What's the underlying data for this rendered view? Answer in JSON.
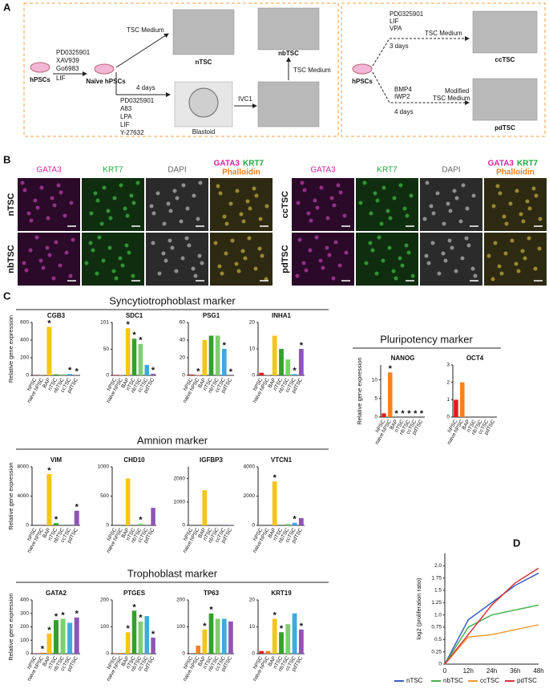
{
  "panel_a": {
    "label": "A",
    "left": {
      "start": "hPSCs",
      "naive_factors": [
        "PD0325901",
        "XAV939",
        "Go6983"
      ],
      "lif": "LIF",
      "naive": "Naïve hPSCs",
      "top_medium": "TSC Medium",
      "ntsc": "nTSC",
      "days": "4 days",
      "blastoid_factors": [
        "PD0325901",
        "A83",
        "LPA",
        "LIF",
        "Y-27632"
      ],
      "blastoid": "Blastoid",
      "ivc": "IVC1",
      "nb_medium": "TSC Medium",
      "nbtsc": "nbTSC"
    },
    "right": {
      "start": "hPSCs",
      "cc_factors": [
        "PD0325901",
        "LIF",
        "VPA",
        "3 days"
      ],
      "cc_medium": "TSC Medium",
      "cctsc": "ccTSC",
      "pd_factors": [
        "BMP4",
        "IWP2",
        "4 days"
      ],
      "pd_medium": [
        "Modified",
        "TSC Medium"
      ],
      "pdtsc": "pdTSC"
    }
  },
  "panel_b": {
    "label": "B",
    "columns": [
      "GATA3",
      "KRT7",
      "DAPI"
    ],
    "merged": [
      {
        "text": "GATA3",
        "color": "#d6249f"
      },
      {
        "text": "KRT7",
        "color": "#1fa83a"
      },
      {
        "text": "Phalloidin",
        "color": "#f07f1e"
      }
    ],
    "groups": [
      {
        "rows": [
          "nTSC",
          "nbTSC"
        ]
      },
      {
        "rows": [
          "ccTSC",
          "pdTSC"
        ]
      }
    ]
  },
  "panel_c": {
    "label": "C",
    "sections": [
      "Syncytiotrophoblast marker",
      "Pluripotency marker",
      "Amnion marker",
      "Trophoblast marker"
    ]
  },
  "panel_d": {
    "label": "D"
  },
  "chart_data": [
    {
      "type": "bar",
      "title": "CGB3",
      "ylabel": "Relative gene expression",
      "categories": [
        "hPSC",
        "naive hPSC",
        "BAP",
        "nTSC",
        "nbTSC",
        "ccTSC",
        "pdTSC"
      ],
      "values": [
        1,
        2,
        550,
        12,
        13,
        16,
        2
      ],
      "colors": [
        "#e31a1c",
        "#f58220",
        "#f5c518",
        "#33a02c",
        "#7dcf6f",
        "#3fa9e0",
        "#8e55b5"
      ],
      "stars": [
        null,
        null,
        "*",
        null,
        null,
        "*",
        "*"
      ],
      "ylim": [
        0,
        600
      ],
      "yticks": [
        0,
        200,
        400,
        600
      ]
    },
    {
      "type": "bar",
      "title": "SDC1",
      "categories": [
        "hPSC",
        "naive hPSC",
        "BAP",
        "nTSC",
        "nbTSC",
        "ccTSC",
        "pdTSC"
      ],
      "values": [
        1,
        0.5,
        90,
        70,
        60,
        20,
        3
      ],
      "colors": [
        "#e31a1c",
        "#f58220",
        "#f5c518",
        "#33a02c",
        "#7dcf6f",
        "#3fa9e0",
        "#8e55b5"
      ],
      "stars": [
        null,
        null,
        "*",
        "*",
        "*",
        null,
        "*"
      ],
      "ylim": [
        0,
        101
      ],
      "yticks": [
        0,
        50,
        101
      ]
    },
    {
      "type": "bar",
      "title": "PSG1",
      "categories": [
        "hPSC",
        "naive hPSC",
        "BAP",
        "nTSC",
        "nbTSC",
        "ccTSC",
        "pdTSC"
      ],
      "values": [
        1,
        0.5,
        40,
        45,
        45,
        30,
        0.1
      ],
      "colors": [
        "#e31a1c",
        "#f58220",
        "#f5c518",
        "#33a02c",
        "#7dcf6f",
        "#3fa9e0",
        "#8e55b5"
      ],
      "stars": [
        null,
        "*",
        null,
        null,
        null,
        "*",
        "*"
      ],
      "ylim": [
        0,
        60
      ],
      "yticks": [
        0,
        20,
        40,
        60
      ]
    },
    {
      "type": "bar",
      "title": "INHA1",
      "categories": [
        "hPSC",
        "naive hPSC",
        "BAP",
        "nTSC",
        "nbTSC",
        "ccTSC",
        "pdTSC"
      ],
      "values": [
        1,
        0.1,
        15,
        10,
        6,
        0.5,
        10
      ],
      "colors": [
        "#e31a1c",
        "#f58220",
        "#f5c518",
        "#33a02c",
        "#7dcf6f",
        "#3fa9e0",
        "#8e55b5"
      ],
      "stars": [
        null,
        null,
        null,
        null,
        null,
        "*",
        "*"
      ],
      "ylim": [
        0,
        20
      ],
      "yticks": [
        0,
        10,
        20
      ]
    },
    {
      "type": "bar",
      "title": "NANOG",
      "ylabel": "Relative gene expression",
      "categories": [
        "hPSC",
        "naive hPSC",
        "BAP",
        "nTSC",
        "nbTSC",
        "ccTSC",
        "pdTSC"
      ],
      "values": [
        1,
        12,
        0,
        0,
        0,
        0,
        0
      ],
      "colors": [
        "#e31a1c",
        "#f58220",
        "#f5c518",
        "#33a02c",
        "#7dcf6f",
        "#3fa9e0",
        "#8e55b5"
      ],
      "stars": [
        null,
        "*",
        "*",
        "*",
        "*",
        "*",
        "*"
      ],
      "ylim": [
        0,
        14
      ],
      "yticks": [
        0,
        5,
        10
      ]
    },
    {
      "type": "bar",
      "title": "OCT4",
      "categories": [
        "hPSC",
        "naive hPSC",
        "BAP",
        "nTSC",
        "nbTSC",
        "ccTSC",
        "pdTSC"
      ],
      "values": [
        1,
        2,
        0,
        0,
        0,
        0,
        0
      ],
      "colors": [
        "#e31a1c",
        "#f58220",
        "#f5c518",
        "#33a02c",
        "#7dcf6f",
        "#3fa9e0",
        "#8e55b5"
      ],
      "ylim": [
        0,
        3
      ],
      "yticks": [
        0,
        1,
        2,
        3
      ]
    },
    {
      "type": "bar",
      "title": "VIM",
      "ylabel": "Relative gene expression",
      "categories": [
        "hPSC",
        "naive hPSC",
        "BAP",
        "nTSC",
        "nbTSC",
        "ccTSC",
        "pdTSC"
      ],
      "values": [
        1,
        1,
        7000,
        300,
        1,
        1,
        2000
      ],
      "colors": [
        "#e31a1c",
        "#f58220",
        "#f5c518",
        "#33a02c",
        "#7dcf6f",
        "#3fa9e0",
        "#8e55b5"
      ],
      "stars": [
        null,
        null,
        "*",
        "*",
        null,
        null,
        "*"
      ],
      "ylim": [
        0,
        8000
      ],
      "yticks": [
        0,
        4000,
        8000
      ]
    },
    {
      "type": "bar",
      "title": "CHD10",
      "categories": [
        "hPSC",
        "naive hPSC",
        "BAP",
        "nTSC",
        "nbTSC",
        "ccTSC",
        "pdTSC"
      ],
      "values": [
        1,
        1,
        800,
        1,
        30,
        1,
        300
      ],
      "colors": [
        "#e31a1c",
        "#f58220",
        "#f5c518",
        "#33a02c",
        "#7dcf6f",
        "#3fa9e0",
        "#8e55b5"
      ],
      "stars": [
        null,
        null,
        null,
        null,
        "*",
        null,
        null
      ],
      "ylim": [
        0,
        1000
      ],
      "yticks": [
        0,
        500,
        1000
      ]
    },
    {
      "type": "bar",
      "title": "IGFBP3",
      "categories": [
        "hPSC",
        "naive hPSC",
        "BAP",
        "nTSC",
        "nbTSC",
        "ccTSC",
        "pdTSC"
      ],
      "values": [
        1,
        1,
        1500,
        1,
        1,
        1,
        20
      ],
      "colors": [
        "#e31a1c",
        "#f58220",
        "#f5c518",
        "#33a02c",
        "#7dcf6f",
        "#3fa9e0",
        "#8e55b5"
      ],
      "ylim": [
        0,
        2500
      ],
      "yticks": [
        0,
        1000,
        2000
      ]
    },
    {
      "type": "bar",
      "title": "VTCN1",
      "categories": [
        "hPSC",
        "naive hPSC",
        "BAP",
        "nTSC",
        "nbTSC",
        "ccTSC",
        "pdTSC"
      ],
      "values": [
        1,
        1,
        3000,
        1,
        100,
        180,
        500
      ],
      "colors": [
        "#e31a1c",
        "#f58220",
        "#f5c518",
        "#33a02c",
        "#7dcf6f",
        "#3fa9e0",
        "#8e55b5"
      ],
      "stars": [
        null,
        null,
        "*",
        null,
        null,
        "*",
        null
      ],
      "ylim": [
        0,
        4000
      ],
      "yticks": [
        0,
        2000,
        4000
      ]
    },
    {
      "type": "bar",
      "title": "GATA2",
      "ylabel": "Relative gene expression",
      "categories": [
        "hPSC",
        "naive hPSC",
        "BAP",
        "nTSC",
        "nbTSC",
        "ccTSC",
        "pdTSC"
      ],
      "values": [
        1,
        7,
        150,
        250,
        260,
        230,
        270
      ],
      "colors": [
        "#e31a1c",
        "#f58220",
        "#f5c518",
        "#33a02c",
        "#7dcf6f",
        "#3fa9e0",
        "#8e55b5"
      ],
      "stars": [
        null,
        "*",
        "*",
        "*",
        "*",
        null,
        "*"
      ],
      "ylim": [
        0,
        400
      ],
      "yticks": [
        0,
        100,
        200,
        300,
        400
      ]
    },
    {
      "type": "bar",
      "title": "PTGES",
      "categories": [
        "hPSC",
        "naive hPSC",
        "BAP",
        "nTSC",
        "nbTSC",
        "ccTSC",
        "pdTSC"
      ],
      "values": [
        1,
        3,
        80,
        160,
        120,
        140,
        60
      ],
      "colors": [
        "#e31a1c",
        "#f58220",
        "#f5c518",
        "#33a02c",
        "#7dcf6f",
        "#3fa9e0",
        "#8e55b5"
      ],
      "stars": [
        null,
        null,
        "*",
        "*",
        "*",
        null,
        "*"
      ],
      "ylim": [
        0,
        200
      ],
      "yticks": [
        0,
        100,
        200
      ]
    },
    {
      "type": "bar",
      "title": "TP63",
      "categories": [
        "hPSC",
        "naive hPSC",
        "BAP",
        "nTSC",
        "nbTSC",
        "ccTSC",
        "pdTSC"
      ],
      "values": [
        1,
        30,
        90,
        150,
        130,
        130,
        120
      ],
      "colors": [
        "#e31a1c",
        "#f58220",
        "#f5c518",
        "#33a02c",
        "#7dcf6f",
        "#3fa9e0",
        "#8e55b5"
      ],
      "stars": [
        null,
        null,
        "*",
        "*",
        null,
        null,
        null
      ],
      "ylim": [
        0,
        200
      ],
      "yticks": [
        0,
        100,
        200
      ]
    },
    {
      "type": "bar",
      "title": "KRT19",
      "categories": [
        "hPSC",
        "naive hPSC",
        "BAP",
        "nTSC",
        "nbTSC",
        "ccTSC",
        "pdTSC"
      ],
      "values": [
        1,
        1,
        13,
        8,
        11,
        15,
        9
      ],
      "colors": [
        "#e31a1c",
        "#f58220",
        "#f5c518",
        "#33a02c",
        "#7dcf6f",
        "#3fa9e0",
        "#8e55b5"
      ],
      "stars": [
        null,
        null,
        "*",
        "*",
        null,
        null,
        "*"
      ],
      "ylim": [
        0,
        20
      ],
      "yticks": [
        0,
        10,
        20
      ]
    },
    {
      "type": "line",
      "ylabel": "log2 (proliferation ratio)",
      "categories": [
        "0",
        "12h",
        "24h",
        "36h",
        "48h"
      ],
      "series": [
        {
          "name": "nTSC",
          "color": "#3b5fc0",
          "values": [
            0,
            0.9,
            1.25,
            1.6,
            1.85
          ]
        },
        {
          "name": "nbTSC",
          "color": "#4caf50",
          "values": [
            0,
            0.75,
            1.0,
            1.1,
            1.2
          ]
        },
        {
          "name": "ccTSC",
          "color": "#f39c34",
          "values": [
            0,
            0.55,
            0.6,
            0.7,
            0.8
          ]
        },
        {
          "name": "pdTSC",
          "color": "#d8343a",
          "values": [
            0,
            0.6,
            1.2,
            1.65,
            1.95
          ]
        }
      ],
      "ylim": [
        0,
        2.25
      ],
      "yticks": [
        0,
        0.25,
        0.5,
        0.75,
        {
          "value": 1,
          "label": "1.0"
        },
        1.25,
        1.5,
        1.75,
        {
          "value": 2,
          "label": "2.0"
        }
      ]
    }
  ]
}
